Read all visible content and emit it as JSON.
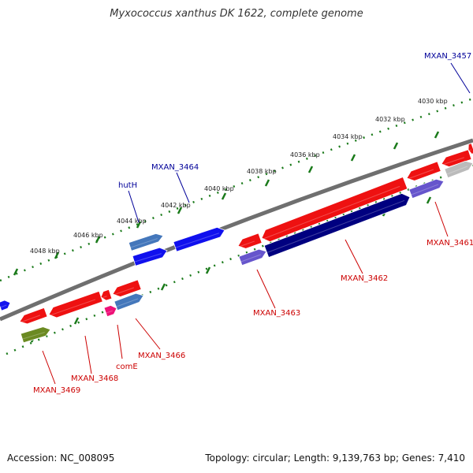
{
  "title": "Myxococcus xanthus DK 1622, complete genome",
  "footer": {
    "accession": "Accession: NC_008095",
    "info": "Topology: circular; Length: 9,139,763 bp; Genes: 7,410"
  },
  "colors": {
    "backbone": "#777777",
    "tick": "#1a7a1a",
    "forward_gene": "#ee1111",
    "reverse_gene": "#1111ee",
    "label_forward": "#000099",
    "label_reverse": "#cc0000"
  },
  "scale_labels": [
    "4048 kbp",
    "4046 kbp",
    "4044 kbp",
    "4042 kbp",
    "4040 kbp",
    "4038 kbp",
    "4036 kbp",
    "4034 kbp",
    "4032 kbp",
    "4030 kbp"
  ],
  "gene_labels": [
    {
      "name": "MXAN_3457",
      "strand": "forward"
    },
    {
      "name": "MXAN_3464",
      "strand": "forward"
    },
    {
      "name": "hutH",
      "strand": "forward"
    },
    {
      "name": "MXAN_3461",
      "strand": "reverse"
    },
    {
      "name": "MXAN_3462",
      "strand": "reverse"
    },
    {
      "name": "MXAN_3463",
      "strand": "reverse"
    },
    {
      "name": "MXAN_3466",
      "strand": "reverse"
    },
    {
      "name": "comE",
      "strand": "reverse"
    },
    {
      "name": "MXAN_3468",
      "strand": "reverse"
    },
    {
      "name": "MXAN_3469",
      "strand": "reverse"
    }
  ]
}
